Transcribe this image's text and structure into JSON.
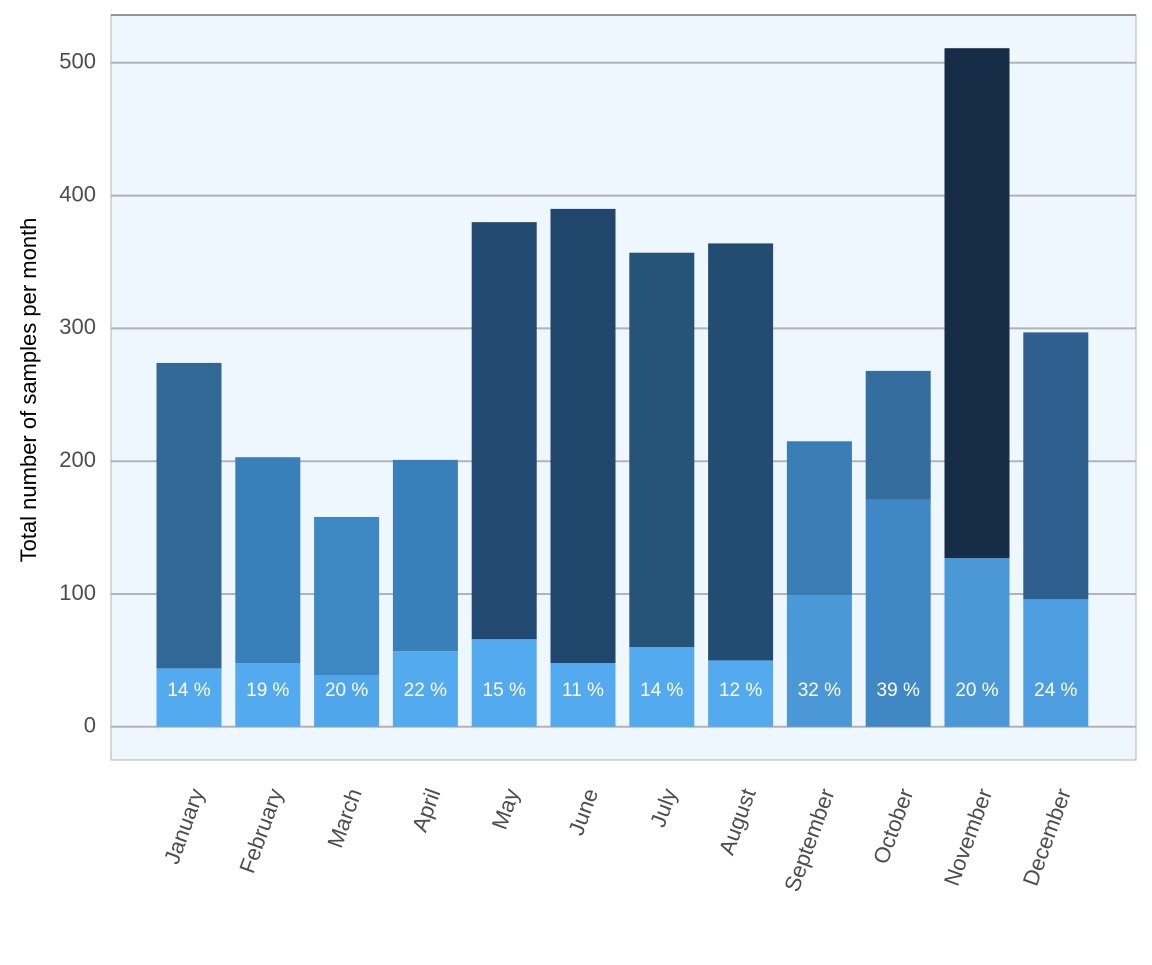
{
  "chart_data": {
    "type": "stacked-bar",
    "y_label": "Total number of samples per month",
    "categories": [
      "January",
      "February",
      "March",
      "April",
      "May",
      "June",
      "July",
      "August",
      "September",
      "October",
      "November",
      "December"
    ],
    "series": [
      {
        "values": [
          44,
          48,
          39,
          57,
          66,
          48,
          60,
          50,
          99,
          171,
          127,
          96
        ],
        "colors": [
          "#53aaee",
          "#53aaee",
          "#50a6ea",
          "#53aaee",
          "#53aaee",
          "#53aaee",
          "#53aaee",
          "#53aaee",
          "#4a98d6",
          "#3f88c5",
          "#4a98d6",
          "#4d9ee0"
        ],
        "value_labels": [
          "14 %",
          "19 %",
          "20 %",
          "22 %",
          "15 %",
          "11 %",
          "14 %",
          "12 %",
          "32 %",
          "39 %",
          "20 %",
          "24 %"
        ]
      },
      {
        "values": [
          230,
          155,
          119,
          144,
          314,
          342,
          297,
          314,
          116,
          97,
          384,
          201
        ],
        "colors": [
          "#326895",
          "#3a80b8",
          "#3d87c3",
          "#3a80b8",
          "#22496f",
          "#21466b",
          "#265378",
          "#234c72",
          "#3a7db4",
          "#356d9e",
          "#172c46",
          "#2f5f8e"
        ]
      }
    ],
    "ylim": [
      -25,
      536
    ],
    "yticks": [
      0,
      100,
      200,
      300,
      400,
      500
    ],
    "grid": true
  }
}
